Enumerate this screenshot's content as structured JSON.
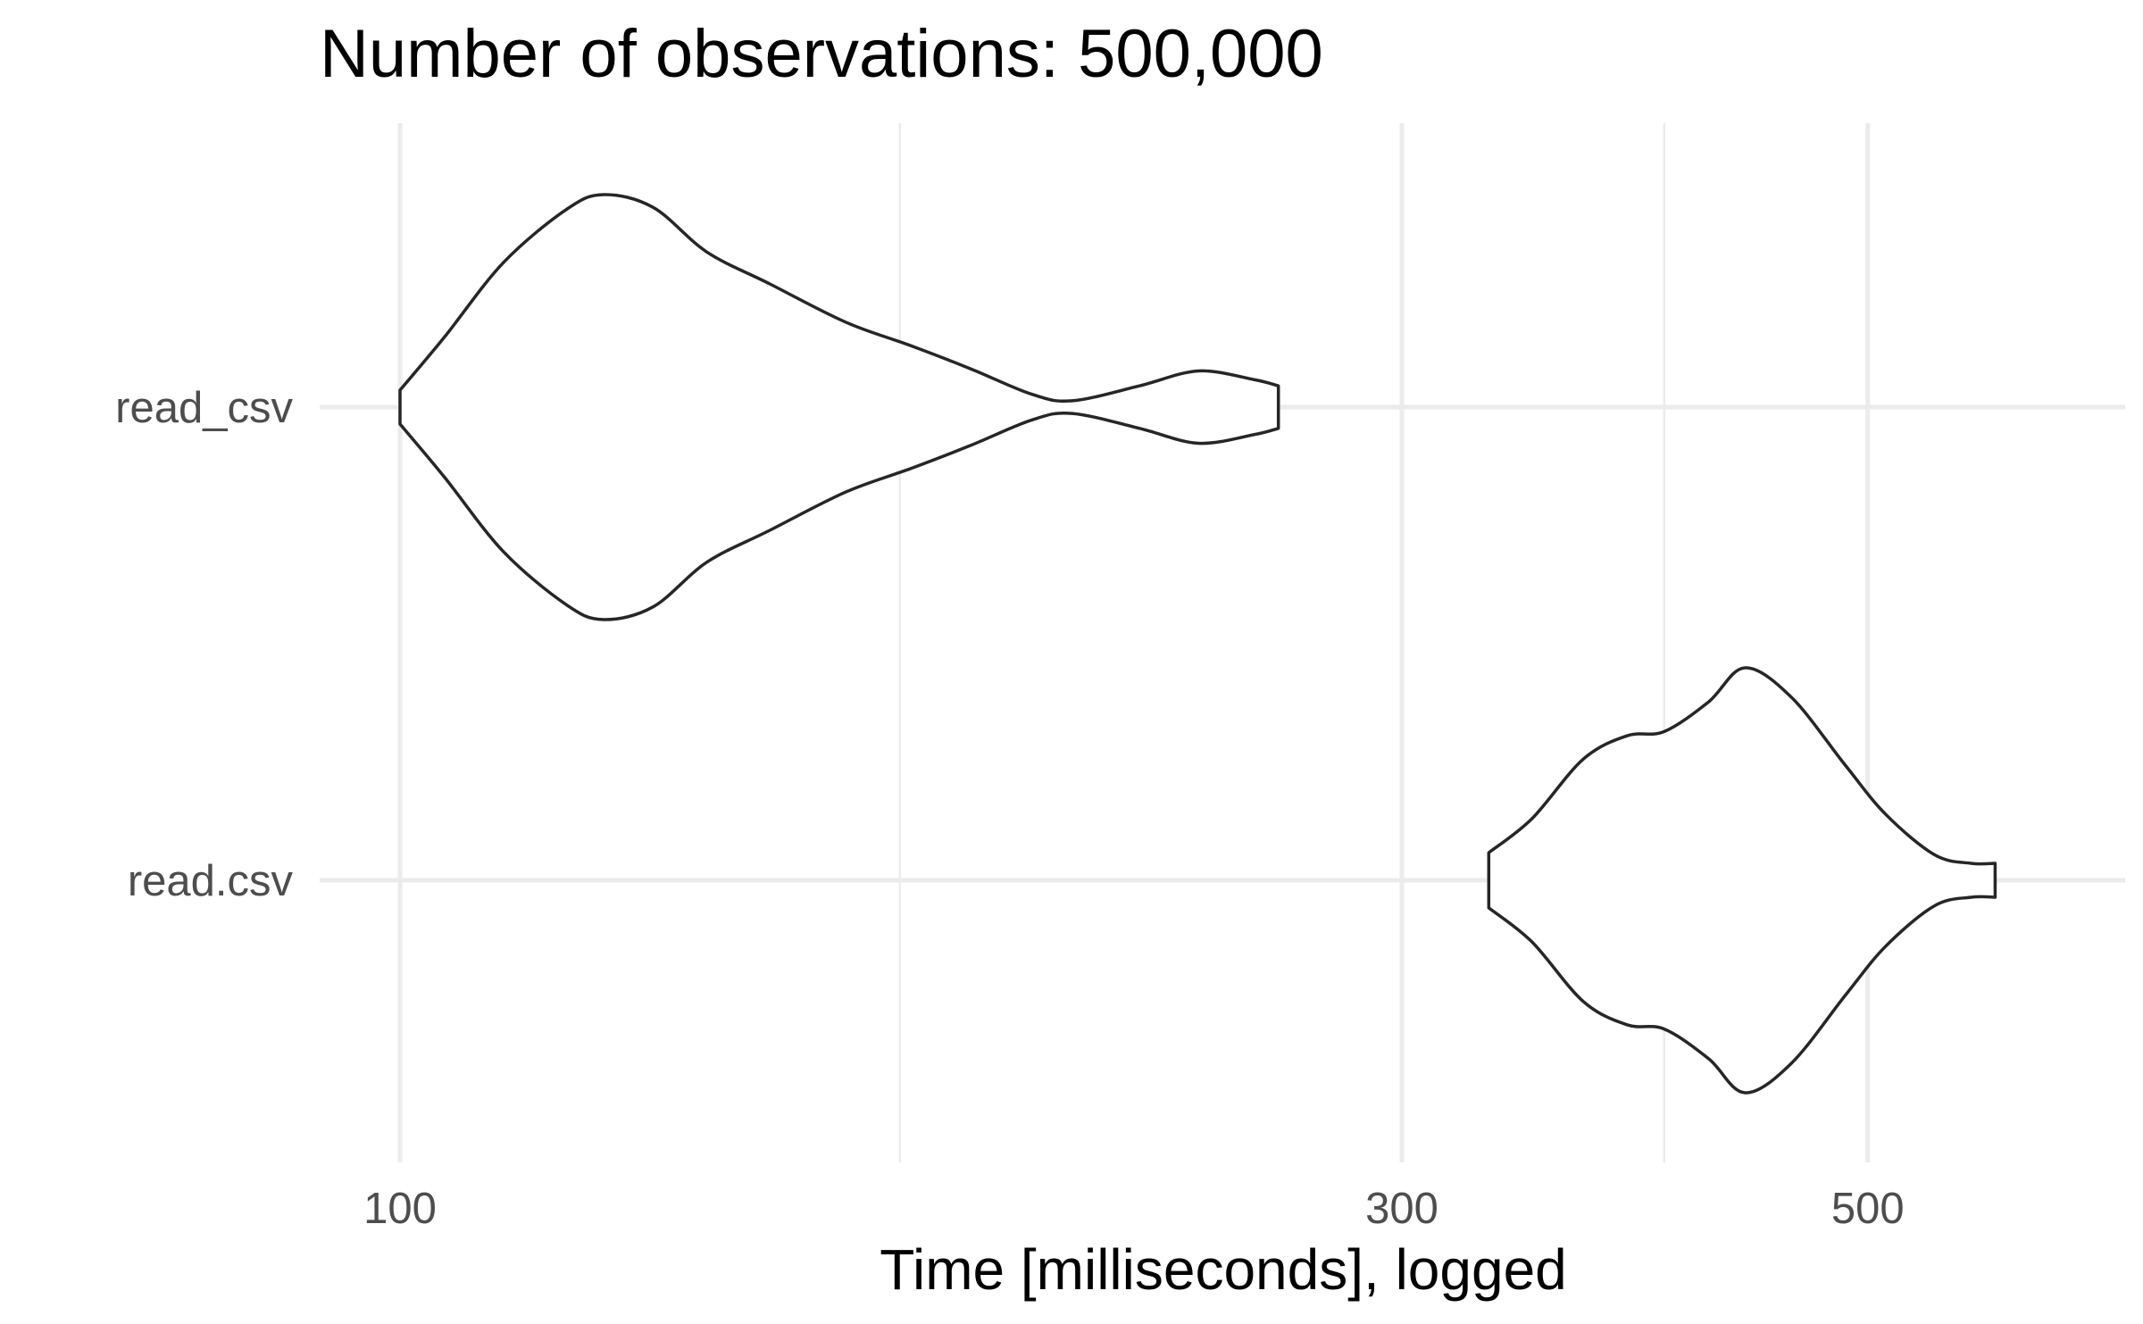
{
  "chart_data": {
    "type": "violin",
    "title": "Number of observations: 500,000",
    "xlabel": "Time [milliseconds], logged",
    "ylabel": "",
    "x_scale": "log10",
    "xlim": [
      92,
      650
    ],
    "x_ticks": [
      {
        "value": 100,
        "label": "100"
      },
      {
        "value": 300,
        "label": "300"
      },
      {
        "value": 500,
        "label": "500"
      }
    ],
    "x_minor_gridlines": [
      173,
      400
    ],
    "categories": [
      "read_csv",
      "read.csv"
    ],
    "series": [
      {
        "category": "read_csv",
        "density": [
          [
            100,
            0.08
          ],
          [
            105,
            0.33
          ],
          [
            112,
            0.68
          ],
          [
            120,
            0.93
          ],
          [
            125,
            1.0
          ],
          [
            132,
            0.94
          ],
          [
            140,
            0.73
          ],
          [
            150,
            0.58
          ],
          [
            163,
            0.4
          ],
          [
            175,
            0.29
          ],
          [
            187,
            0.18
          ],
          [
            200,
            0.06
          ],
          [
            209,
            0.03
          ],
          [
            225,
            0.1
          ],
          [
            240,
            0.17
          ],
          [
            255,
            0.13
          ],
          [
            262,
            0.1
          ]
        ]
      },
      {
        "category": "read.csv",
        "density": [
          [
            330,
            0.13
          ],
          [
            346,
            0.29
          ],
          [
            366,
            0.57
          ],
          [
            384,
            0.68
          ],
          [
            400,
            0.7
          ],
          [
            420,
            0.84
          ],
          [
            437,
            1.0
          ],
          [
            460,
            0.86
          ],
          [
            488,
            0.54
          ],
          [
            510,
            0.31
          ],
          [
            538,
            0.12
          ],
          [
            560,
            0.08
          ],
          [
            575,
            0.08
          ]
        ]
      }
    ],
    "grid": true,
    "legend": "none"
  }
}
